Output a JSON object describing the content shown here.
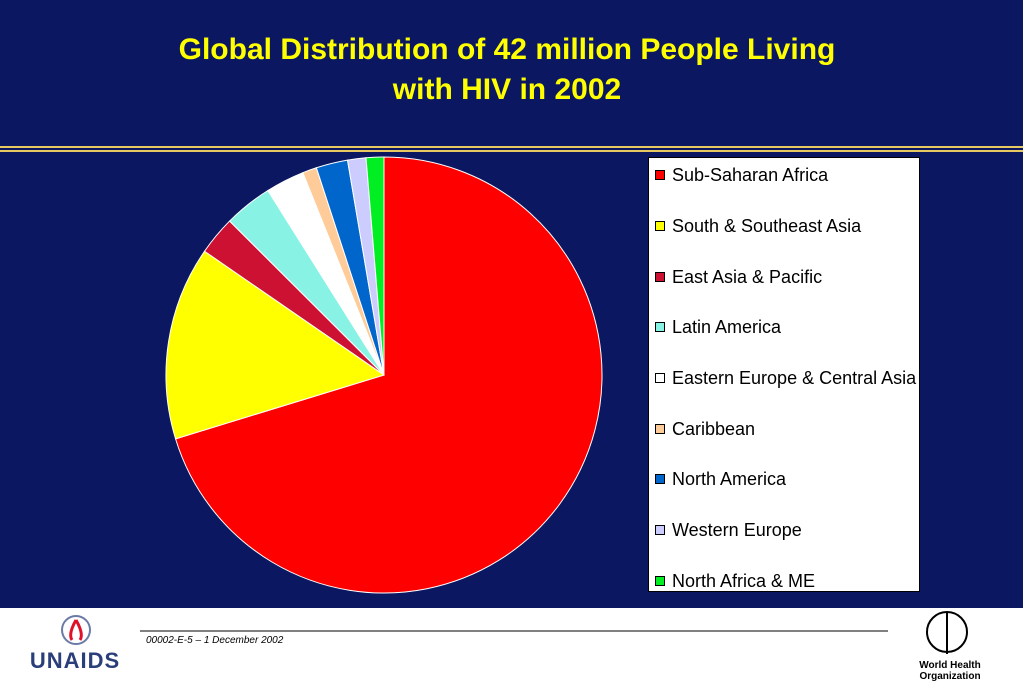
{
  "chart_data": {
    "type": "pie",
    "title": "Global Distribution of 42 million People Living with HIV in 2002",
    "categories": [
      "Sub-Saharan Africa",
      "South & Southeast Asia",
      "East Asia & Pacific",
      "Latin America",
      "Eastern Europe & Central Asia",
      "Caribbean",
      "North America",
      "Western Europe",
      "North Africa & ME"
    ],
    "values": [
      29.4,
      6.0,
      1.2,
      1.5,
      1.2,
      0.44,
      0.98,
      0.57,
      0.55
    ],
    "colors": [
      "#ff0000",
      "#ffff00",
      "#cc1133",
      "#88f2e4",
      "#ffffff",
      "#ffcc99",
      "#0066cc",
      "#ccccff",
      "#00ee22"
    ],
    "legend": "right"
  },
  "footer": {
    "code": "00002-E-5 – 1 December 2002",
    "left_logo": "UNAIDS",
    "right_logo": "World Health Organization"
  }
}
